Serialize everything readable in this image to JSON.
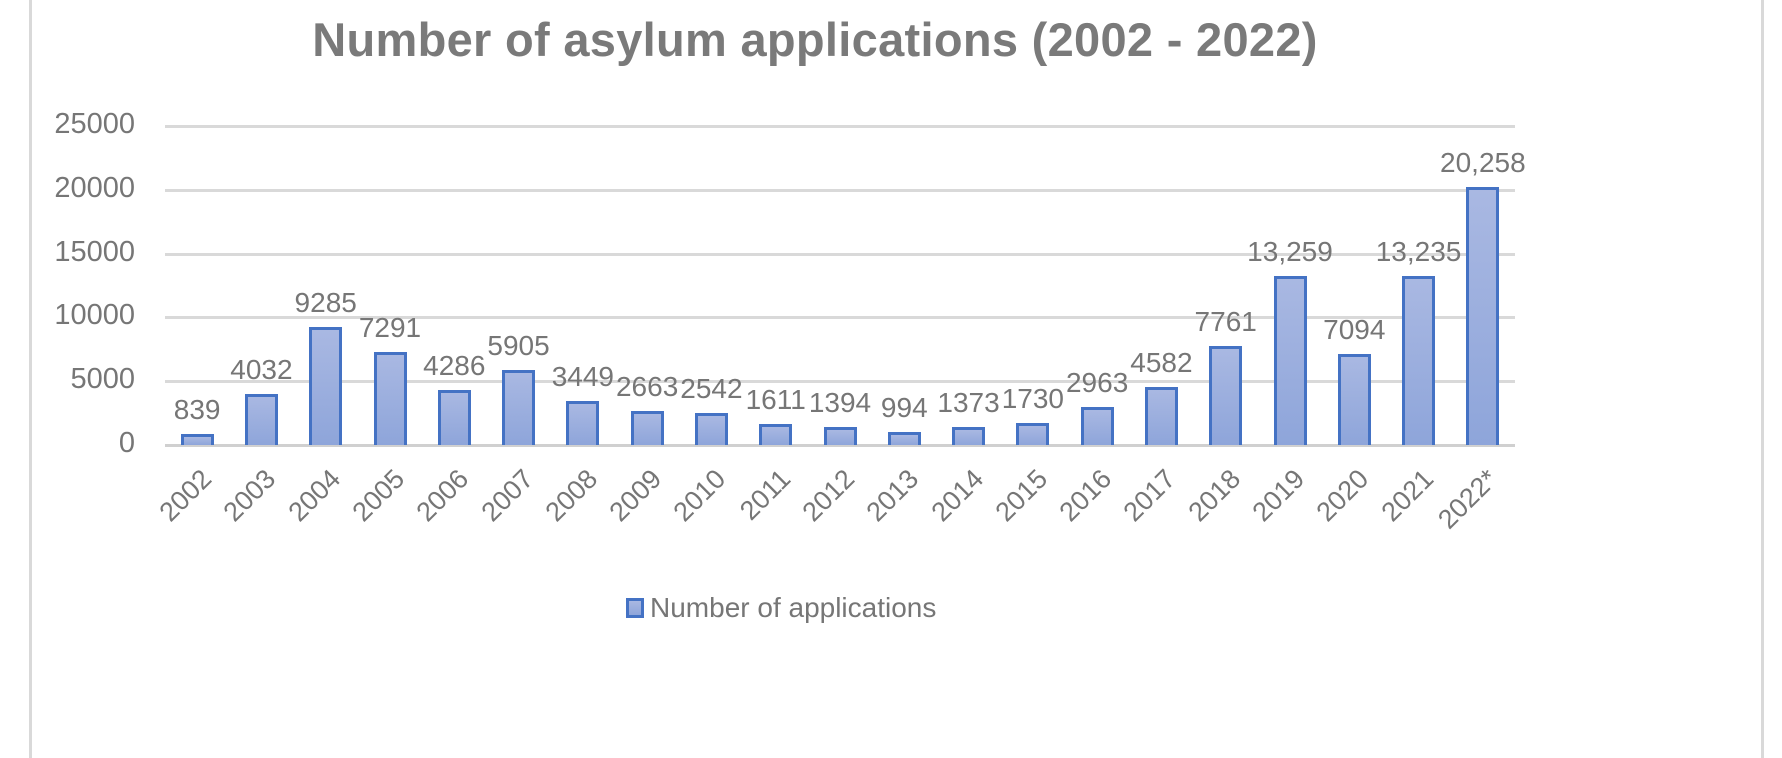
{
  "chart_data": {
    "type": "bar",
    "title": "Number of asylum applications (2002 - 2022)",
    "xlabel": "",
    "ylabel": "",
    "ylim": [
      0,
      25000
    ],
    "yticks": [
      "0",
      "5000",
      "10000",
      "15000",
      "20000",
      "25000"
    ],
    "grid": true,
    "legend_position": "bottom",
    "categories": [
      "2002",
      "2003",
      "2004",
      "2005",
      "2006",
      "2007",
      "2008",
      "2009",
      "2010",
      "2011",
      "2012",
      "2013",
      "2014",
      "2015",
      "2016",
      "2017",
      "2018",
      "2019",
      "2020",
      "2021",
      "2022*"
    ],
    "series": [
      {
        "name": "Number of applications",
        "color": "#4472c4",
        "fill": "#9eb0df",
        "values": [
          839,
          4032,
          9285,
          7291,
          4286,
          5905,
          3449,
          2663,
          2542,
          1611,
          1394,
          994,
          1373,
          1730,
          2963,
          4582,
          7761,
          13259,
          7094,
          13235,
          20258
        ],
        "labels": [
          "839",
          "4032",
          "9285",
          "7291",
          "4286",
          "5905",
          "3449",
          "2663",
          "2542",
          "1611",
          "1394",
          "994",
          "1373",
          "1730",
          "2963",
          "4582",
          "7761",
          "13,259",
          "7094",
          "13,235",
          "20,258"
        ]
      }
    ]
  }
}
